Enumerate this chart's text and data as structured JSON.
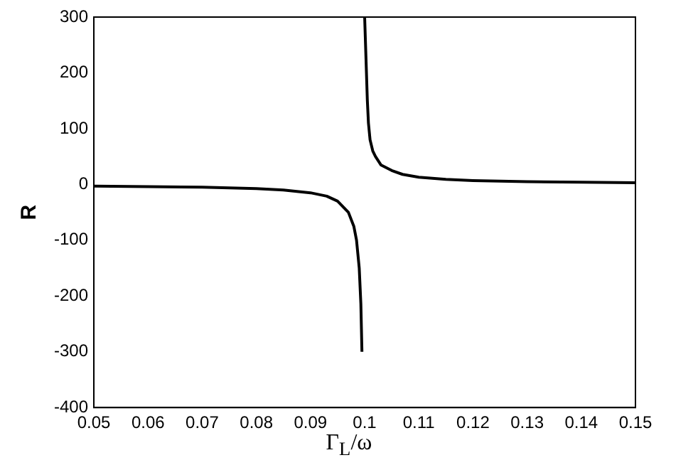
{
  "chart_data": {
    "type": "line",
    "xlabel": "Γ$_{L}$/ω",
    "ylabel": "R",
    "series": [
      {
        "color": "#000000",
        "x": [
          0.05,
          0.06,
          0.07,
          0.08,
          0.085,
          0.09,
          0.093,
          0.095,
          0.097,
          0.098,
          0.0985,
          0.099,
          0.0993,
          0.0995
        ],
        "values": [
          -3,
          -4,
          -5,
          -7.5,
          -10,
          -15,
          -21,
          -30,
          -50,
          -75,
          -100,
          -150,
          -214,
          -300
        ]
      },
      {
        "color": "#000000",
        "x": [
          0.1,
          0.1005,
          0.1007,
          0.101,
          0.1015,
          0.102,
          0.103,
          0.105,
          0.107,
          0.11,
          0.115,
          0.12,
          0.13,
          0.14,
          0.15
        ],
        "values": [
          300,
          150,
          110,
          80,
          60,
          50,
          35,
          25,
          18,
          13,
          9,
          7,
          5,
          4,
          3
        ]
      }
    ],
    "xlim": [
      0.05,
      0.15
    ],
    "xticks": [
      0.05,
      0.06,
      0.07,
      0.08,
      0.09,
      0.1,
      0.11,
      0.12,
      0.13,
      0.14,
      0.15
    ],
    "ylim": [
      -400,
      300
    ],
    "yticks": [
      -400,
      -300,
      -200,
      -100,
      0,
      100,
      200,
      300
    ],
    "grid": false,
    "legend": false,
    "marker": "none",
    "line_style": "solid"
  }
}
